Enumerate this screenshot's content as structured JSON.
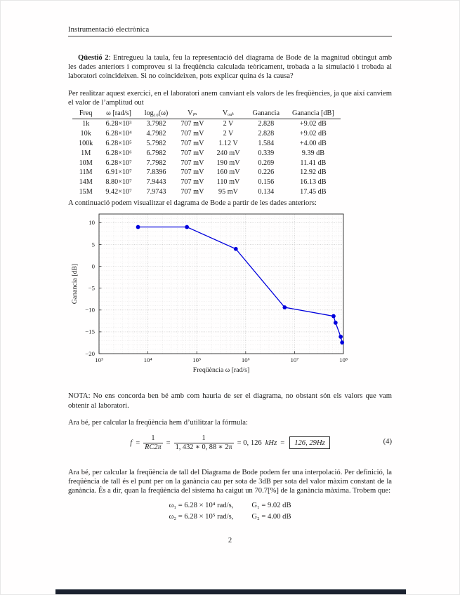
{
  "header": {
    "title": "Instrumentació electrònica"
  },
  "footer": {
    "page_number": "2"
  },
  "question": {
    "label": "Qüestió 2",
    "text": ": Entregueu la taula, feu la representació del diagrama de Bode de la magnitud obtingut amb les dades anteriors i comproveu si la freqüència calculada teòricament, trobada a la simulació i trobada al laboratori coincideixen. Si no coincideixen, pots explicar quina és la causa?"
  },
  "intro_paragraph": "Per realitzar aquest exercici, en el laboratori anem canviant els valors de les freqüències, ja que així canviem el valor de l’amplitud out",
  "table": {
    "headers": [
      "Freq",
      "ω [rad/s]",
      "log₁₀(ω)",
      "Vᵢₙ",
      "Vₒᵤₜ",
      "Ganancia",
      "Ganancia [dB]"
    ],
    "rows": [
      [
        "1k",
        "6.28×10³",
        "3.7982",
        "707 mV",
        "2 V",
        "2.828",
        "+9.02 dB"
      ],
      [
        "10k",
        "6.28×10⁴",
        "4.7982",
        "707 mV",
        "2 V",
        "2.828",
        "+9.02 dB"
      ],
      [
        "100k",
        "6.28×10⁵",
        "5.7982",
        "707 mV",
        "1.12 V",
        "1.584",
        "+4.00 dB"
      ],
      [
        "1M",
        "6.28×10⁶",
        "6.7982",
        "707 mV",
        "240 mV",
        "0.339",
        "9.39 dB"
      ],
      [
        "10M",
        "6.28×10⁷",
        "7.7982",
        "707 mV",
        "190 mV",
        "0.269",
        "11.41 dB"
      ],
      [
        "11M",
        "6.91×10⁷",
        "7.8396",
        "707 mV",
        "160 mV",
        "0.226",
        "12.92 dB"
      ],
      [
        "14M",
        "8.80×10⁷",
        "7.9443",
        "707 mV",
        "110 mV",
        "0.156",
        "16.13 dB"
      ],
      [
        "15M",
        "9.42×10⁷",
        "7.9743",
        "707 mV",
        "95 mV",
        "0.134",
        "17.45 dB"
      ]
    ]
  },
  "chart_intro": "A continuació podem visualitzar el dagrama de Bode a partir de les dades anteriors:",
  "chart_data": {
    "type": "line",
    "title": "",
    "xlabel": "Freqüència ω [rad/s]",
    "ylabel": "Ganancia [dB]",
    "x_scale": "log",
    "xlim_log10": [
      3,
      8
    ],
    "ylim": [
      -20,
      12
    ],
    "x_tick_labels": [
      "10³",
      "10⁴",
      "10⁵",
      "10⁶",
      "10⁷",
      "10⁸"
    ],
    "y_ticks": [
      10,
      5,
      0,
      -5,
      -10,
      -15,
      -20
    ],
    "y_tick_labels": [
      "10",
      "5",
      "0",
      "−5",
      "−10",
      "−15",
      "−20"
    ],
    "grid": "both-dotted",
    "legend": "none",
    "line_color": "#0000dd",
    "series": [
      {
        "name": "Ganancia [dB] vs ω",
        "x": [
          6280,
          62800,
          628000,
          6280000,
          62800000,
          69100000,
          88000000,
          94200000
        ],
        "y": [
          9.02,
          9.02,
          4.0,
          -9.39,
          -11.41,
          -12.92,
          -16.13,
          -17.45
        ]
      }
    ]
  },
  "nota_paragraph": "NOTA: No ens concorda ben bé amb com hauria de ser el diagrama, no obstant són els valors que vam obtenir al laboratori.",
  "formula_intro": "Ara bé, per calcular la freqüència hem d’utilitzar la fórmula:",
  "equation4": {
    "lhs": "f",
    "equals": "=",
    "frac1": {
      "num": "1",
      "den": "RC2π"
    },
    "frac2": {
      "num": "1",
      "den": "1, 432 ∗ 0, 88 ∗ 2π"
    },
    "result_prefix": "= 0, 126",
    "result_unit": "kHz",
    "result_equals": "=",
    "boxed_value": "126, 29Hz",
    "tag": "(4)"
  },
  "cutoff_paragraph": "Ara bé, per calcular la freqüència de tall del Diagrama de Bode podem fer una interpolació. Per definició, la freqüència de tall és el punt per on la ganància cau per sota de 3dB per sota del valor màxim constant de la ganància. És a dir, quan la freqüència del sistema ha caigut un 70.7[%] de la ganància màxima. Trobem que:",
  "conclusions": {
    "line1": {
      "omega": "ω₁ = 6.28 × 10⁴ rad/s,",
      "gain": "G₁ = 9.02 dB"
    },
    "line2": {
      "omega": "ω₂ = 6.28 × 10⁵ rad/s,",
      "gain": "G₂ = 4.00 dB"
    }
  }
}
